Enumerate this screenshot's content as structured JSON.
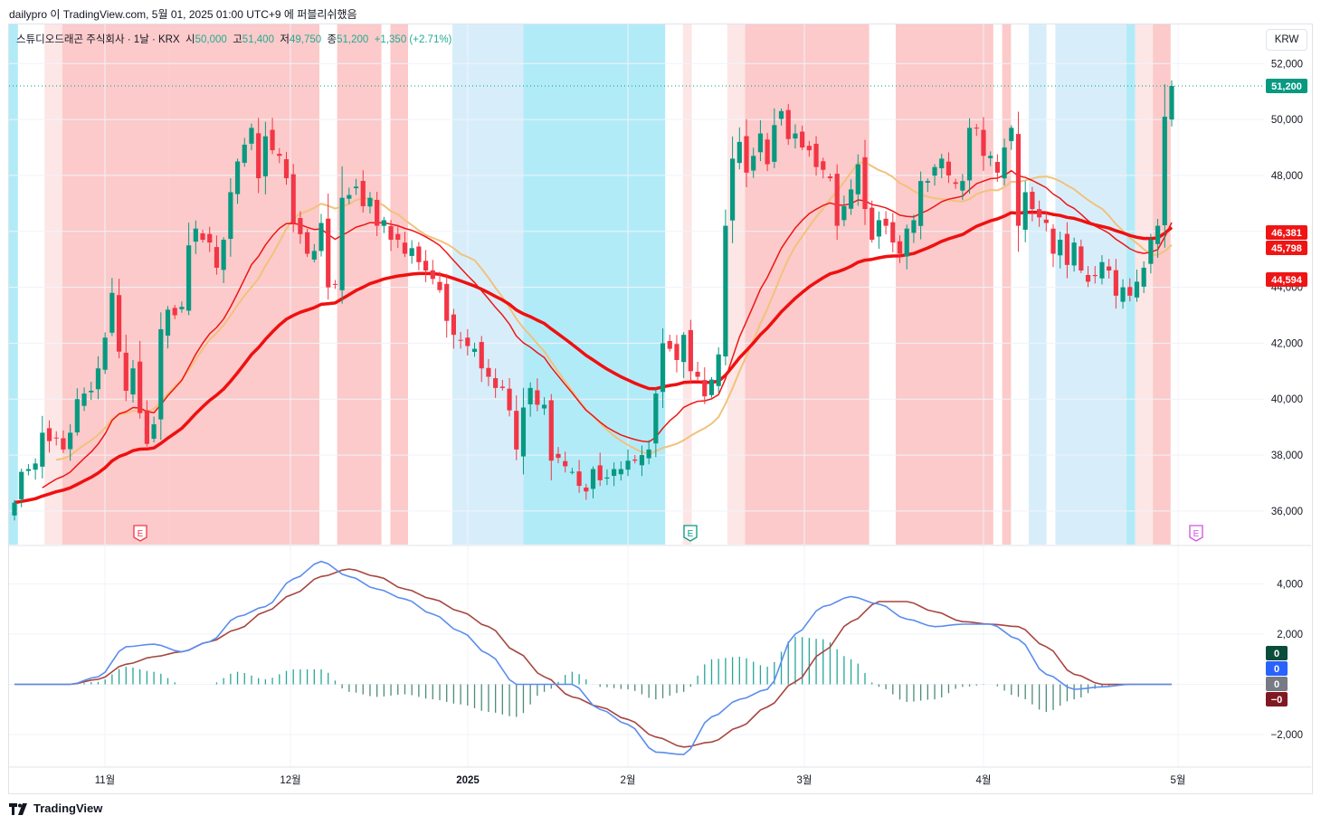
{
  "header": {
    "text": "dailypro 이 TradingView.com, 5월 01, 2025 01:00 UTC+9 에 퍼블리쉬했음"
  },
  "symbol": {
    "name": "스튜디오드래곤 주식회사 · 1날 · KRX",
    "open_label": "시",
    "open": "50,000",
    "high_label": "고",
    "high": "51,400",
    "low_label": "저",
    "low": "49,750",
    "close_label": "종",
    "close": "51,200",
    "change": "+1,350 (+2.71%)"
  },
  "currency_button": "KRW",
  "footer": {
    "brand": "TradingView"
  },
  "colors": {
    "up": "#089981",
    "down": "#f23645",
    "ema_fast": "#ef1515",
    "ema_slow": "#ef1010",
    "ma_yellow": "#f1c27d",
    "ma_purple": "#8e6ee8",
    "macd": "#5b8def",
    "signal": "#a7463f",
    "bg_red": "#fccaca",
    "bg_red_light": "#fde6e6",
    "bg_blue": "#b2ebf8",
    "bg_blue_light": "#d7eefa"
  },
  "chart_data": [
    {
      "type": "candlestick",
      "title": "스튜디오드래곤 주식회사 · 1날 · KRX",
      "xlabel": "",
      "ylabel": "KRW",
      "ylim": [
        34800,
        53400
      ],
      "yticks": [
        36000,
        38000,
        40000,
        42000,
        44000,
        46000,
        48000,
        50000,
        52000
      ],
      "ytick_labels": [
        "36,000",
        "38,000",
        "40,000",
        "42,000",
        "44,000",
        "46,000",
        "48,000",
        "50,000",
        "52,000"
      ],
      "xticks": [
        "11월",
        "12월",
        "2025",
        "2월",
        "3월",
        "4월",
        "5월"
      ],
      "last_price": 51200,
      "last_price_label": "51,200",
      "indicator_labels": [
        {
          "value": 46381,
          "label": "46,381"
        },
        {
          "value": 45798,
          "label": "45,798"
        },
        {
          "value": 44594,
          "label": "44,594"
        }
      ],
      "earnings_markers": [
        "E",
        "E",
        "E"
      ],
      "closes": [
        36300,
        37400,
        37500,
        37700,
        38800,
        38500,
        38600,
        38200,
        38800,
        40000,
        40200,
        40300,
        41100,
        42200,
        43800,
        41700,
        40300,
        41100,
        39500,
        38400,
        39100,
        42500,
        43200,
        43000,
        43300,
        45500,
        46100,
        45700,
        45600,
        44700,
        45700,
        47400,
        48500,
        49100,
        49700,
        47900,
        49400,
        48900,
        48700,
        47900,
        46300,
        45900,
        45200,
        45300,
        46300,
        44000,
        44100,
        47200,
        47300,
        47600,
        46900,
        47200,
        46200,
        46400,
        45700,
        45700,
        45200,
        45400,
        44900,
        44600,
        44300,
        43900,
        42800,
        42300,
        42100,
        41900,
        41800,
        41100,
        40800,
        40400,
        40400,
        39600,
        38200,
        39700,
        40400,
        39800,
        39800,
        37800,
        37900,
        37600,
        37400,
        36900,
        36700,
        37500,
        37100,
        37200,
        37500,
        37500,
        37800,
        37800,
        38000,
        38200,
        40200,
        42000,
        41800,
        41400,
        42300,
        41000,
        40800,
        40100,
        40700,
        41600,
        46200,
        48600,
        49200,
        48100,
        48700,
        49500,
        48400,
        49800,
        50300,
        49300,
        49500,
        49000,
        48900,
        48300,
        48200,
        47900,
        46200,
        46900,
        47500,
        48400,
        46800,
        45700,
        46400,
        46200,
        45600,
        45200,
        46100,
        46400,
        47800,
        47800,
        48300,
        48600,
        48000,
        47700,
        47800,
        49700,
        49700,
        48700,
        48700,
        48100,
        49000,
        49700,
        46200,
        47400,
        46800,
        46500,
        46300,
        45200,
        45700,
        44800,
        45600,
        44600,
        44200,
        44400,
        44900,
        44600,
        43700,
        44000,
        43700,
        44200,
        44700,
        45700,
        46200,
        50100,
        51200
      ],
      "opens_omitted": "opens/highs/lows estimated from candle bodies"
    },
    {
      "type": "line",
      "title": "",
      "ylim": [
        -3300,
        5500
      ],
      "yticks": [
        -2000,
        0,
        2000,
        4000
      ],
      "ytick_labels": [
        "−2,000",
        "",
        "2,000",
        "4,000"
      ],
      "value_tags": [
        {
          "label": "0",
          "color": "#0b4d3b"
        },
        {
          "label": "0",
          "color": "#2962ff"
        },
        {
          "label": "0",
          "color": "#787b86"
        },
        {
          "label": "−0",
          "color": "#801922"
        }
      ],
      "macd_knots": [
        [
          0,
          0
        ],
        [
          8,
          0
        ],
        [
          12,
          300
        ],
        [
          16,
          1500
        ],
        [
          20,
          1600
        ],
        [
          24,
          1300
        ],
        [
          28,
          1700
        ],
        [
          32,
          2700
        ],
        [
          36,
          3100
        ],
        [
          40,
          4200
        ],
        [
          44,
          4900
        ],
        [
          48,
          4300
        ],
        [
          52,
          3800
        ],
        [
          56,
          3400
        ],
        [
          60,
          2800
        ],
        [
          64,
          2100
        ],
        [
          68,
          1200
        ],
        [
          72,
          0
        ],
        [
          76,
          0
        ],
        [
          80,
          0
        ],
        [
          84,
          -1000
        ],
        [
          88,
          -1600
        ],
        [
          92,
          -2700
        ],
        [
          96,
          -2800
        ],
        [
          100,
          -1300
        ],
        [
          104,
          -600
        ],
        [
          108,
          -200
        ],
        [
          112,
          2000
        ],
        [
          116,
          3100
        ],
        [
          120,
          3500
        ],
        [
          124,
          3200
        ],
        [
          128,
          2600
        ],
        [
          132,
          2300
        ],
        [
          136,
          2400
        ],
        [
          140,
          2400
        ],
        [
          144,
          1800
        ],
        [
          148,
          400
        ],
        [
          152,
          -200
        ],
        [
          156,
          -100
        ],
        [
          160,
          0
        ],
        [
          175,
          0
        ]
      ],
      "signal_knots": [
        [
          0,
          0
        ],
        [
          8,
          0
        ],
        [
          12,
          200
        ],
        [
          16,
          800
        ],
        [
          20,
          1100
        ],
        [
          24,
          1300
        ],
        [
          28,
          1700
        ],
        [
          32,
          2200
        ],
        [
          36,
          2900
        ],
        [
          40,
          3600
        ],
        [
          44,
          4300
        ],
        [
          48,
          4600
        ],
        [
          52,
          4300
        ],
        [
          56,
          3800
        ],
        [
          60,
          3400
        ],
        [
          64,
          2900
        ],
        [
          68,
          2300
        ],
        [
          72,
          1300
        ],
        [
          76,
          300
        ],
        [
          80,
          -500
        ],
        [
          84,
          -900
        ],
        [
          88,
          -1400
        ],
        [
          92,
          -2100
        ],
        [
          96,
          -2500
        ],
        [
          100,
          -2300
        ],
        [
          104,
          -1700
        ],
        [
          108,
          -900
        ],
        [
          112,
          100
        ],
        [
          116,
          1300
        ],
        [
          120,
          2500
        ],
        [
          124,
          3300
        ],
        [
          128,
          3300
        ],
        [
          132,
          2900
        ],
        [
          136,
          2500
        ],
        [
          140,
          2400
        ],
        [
          144,
          2300
        ],
        [
          148,
          1500
        ],
        [
          152,
          400
        ],
        [
          156,
          0
        ],
        [
          160,
          0
        ],
        [
          175,
          0
        ]
      ]
    }
  ]
}
